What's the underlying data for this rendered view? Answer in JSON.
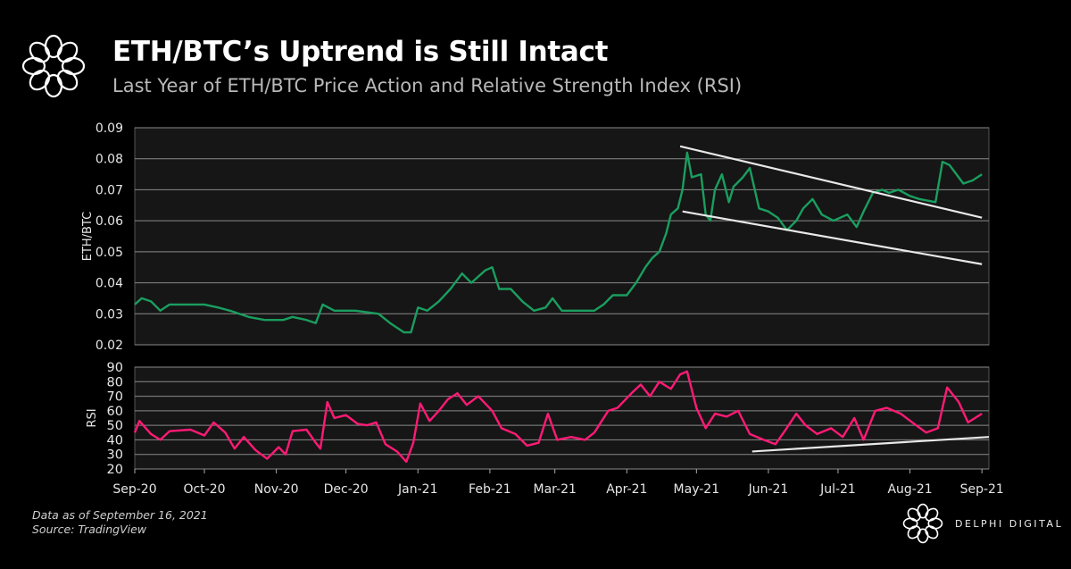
{
  "header": {
    "title": "ETH/BTC’s Uptrend is Still Intact",
    "subtitle": "Last Year of ETH/BTC Price Action and Relative Strength Index (RSI)"
  },
  "footer": {
    "data_note": "Data as of September 16, 2021",
    "source": "Source: TradingView",
    "brand": "DELPHI DIGITAL"
  },
  "colors": {
    "eth_line": "#1a9e5f",
    "rsi_line": "#ff1a75",
    "trendline": "#e8e8e8",
    "plot_bg": "#161616",
    "grid": "#8a8a8a"
  },
  "chart_data": [
    {
      "type": "line",
      "ylabel": "ETH/BTC",
      "ylim": [
        0.02,
        0.09
      ],
      "yticks": [
        "0.09",
        "0.08",
        "0.07",
        "0.06",
        "0.05",
        "0.04",
        "0.03",
        "0.02"
      ],
      "xlim": [
        "2020-09-01",
        "2021-09-04"
      ],
      "grid": true,
      "series": [
        {
          "values": [
            [
              "2020-09-01",
              0.033
            ],
            [
              "2020-09-04",
              0.035
            ],
            [
              "2020-09-08",
              0.034
            ],
            [
              "2020-09-12",
              0.031
            ],
            [
              "2020-09-16",
              0.033
            ],
            [
              "2020-09-28",
              0.033
            ],
            [
              "2020-10-01",
              0.033
            ],
            [
              "2020-10-07",
              0.032
            ],
            [
              "2020-10-12",
              0.031
            ],
            [
              "2020-10-20",
              0.029
            ],
            [
              "2020-10-27",
              0.028
            ],
            [
              "2020-11-04",
              0.028
            ],
            [
              "2020-11-08",
              0.029
            ],
            [
              "2020-11-14",
              0.028
            ],
            [
              "2020-11-18",
              0.027
            ],
            [
              "2020-11-21",
              0.033
            ],
            [
              "2020-11-26",
              0.031
            ],
            [
              "2020-12-05",
              0.031
            ],
            [
              "2020-12-15",
              0.03
            ],
            [
              "2020-12-20",
              0.027
            ],
            [
              "2020-12-26",
              0.024
            ],
            [
              "2020-12-29",
              0.024
            ],
            [
              "2021-01-01",
              0.032
            ],
            [
              "2021-01-05",
              0.031
            ],
            [
              "2021-01-10",
              0.034
            ],
            [
              "2021-01-15",
              0.038
            ],
            [
              "2021-01-20",
              0.043
            ],
            [
              "2021-01-24",
              0.04
            ],
            [
              "2021-01-30",
              0.044
            ],
            [
              "2021-02-02",
              0.045
            ],
            [
              "2021-02-05",
              0.038
            ],
            [
              "2021-02-10",
              0.038
            ],
            [
              "2021-02-15",
              0.034
            ],
            [
              "2021-02-20",
              0.031
            ],
            [
              "2021-02-25",
              0.032
            ],
            [
              "2021-02-28",
              0.035
            ],
            [
              "2021-03-04",
              0.031
            ],
            [
              "2021-03-12",
              0.031
            ],
            [
              "2021-03-18",
              0.031
            ],
            [
              "2021-03-22",
              0.033
            ],
            [
              "2021-03-26",
              0.036
            ],
            [
              "2021-04-01",
              0.036
            ],
            [
              "2021-04-05",
              0.04
            ],
            [
              "2021-04-09",
              0.045
            ],
            [
              "2021-04-12",
              0.048
            ],
            [
              "2021-04-15",
              0.05
            ],
            [
              "2021-04-18",
              0.056
            ],
            [
              "2021-04-20",
              0.062
            ],
            [
              "2021-04-23",
              0.064
            ],
            [
              "2021-04-25",
              0.07
            ],
            [
              "2021-04-27",
              0.082
            ],
            [
              "2021-04-29",
              0.074
            ],
            [
              "2021-05-03",
              0.075
            ],
            [
              "2021-05-05",
              0.062
            ],
            [
              "2021-05-07",
              0.06
            ],
            [
              "2021-05-09",
              0.07
            ],
            [
              "2021-05-12",
              0.075
            ],
            [
              "2021-05-15",
              0.066
            ],
            [
              "2021-05-17",
              0.071
            ],
            [
              "2021-05-21",
              0.074
            ],
            [
              "2021-05-24",
              0.077
            ],
            [
              "2021-05-28",
              0.064
            ],
            [
              "2021-06-01",
              0.063
            ],
            [
              "2021-06-05",
              0.061
            ],
            [
              "2021-06-09",
              0.057
            ],
            [
              "2021-06-13",
              0.06
            ],
            [
              "2021-06-16",
              0.064
            ],
            [
              "2021-06-20",
              0.067
            ],
            [
              "2021-06-24",
              0.062
            ],
            [
              "2021-06-29",
              0.06
            ],
            [
              "2021-07-05",
              0.062
            ],
            [
              "2021-07-09",
              0.058
            ],
            [
              "2021-07-12",
              0.063
            ],
            [
              "2021-07-16",
              0.069
            ],
            [
              "2021-07-20",
              0.07
            ],
            [
              "2021-07-23",
              0.069
            ],
            [
              "2021-07-27",
              0.07
            ],
            [
              "2021-08-01",
              0.068
            ],
            [
              "2021-08-05",
              0.067
            ],
            [
              "2021-08-12",
              0.066
            ],
            [
              "2021-08-15",
              0.079
            ],
            [
              "2021-08-18",
              0.078
            ],
            [
              "2021-08-24",
              0.072
            ],
            [
              "2021-08-28",
              0.073
            ],
            [
              "2021-09-01",
              0.075
            ]
          ]
        }
      ],
      "trendlines": [
        {
          "from": [
            "2021-04-24",
            0.084
          ],
          "to": [
            "2021-09-01",
            0.061
          ]
        },
        {
          "from": [
            "2021-04-25",
            0.063
          ],
          "to": [
            "2021-09-01",
            0.046
          ]
        }
      ]
    },
    {
      "type": "line",
      "ylabel": "RSI",
      "ylim": [
        20,
        90
      ],
      "yticks": [
        "90",
        "80",
        "70",
        "60",
        "50",
        "40",
        "30",
        "20"
      ],
      "xlim": [
        "2020-09-01",
        "2021-09-04"
      ],
      "xticks": [
        [
          "2020-09-01",
          "Sep-20"
        ],
        [
          "2020-10-01",
          "Oct-20"
        ],
        [
          "2020-11-01",
          "Nov-20"
        ],
        [
          "2020-12-01",
          "Dec-20"
        ],
        [
          "2021-01-01",
          "Jan-21"
        ],
        [
          "2021-02-01",
          "Feb-21"
        ],
        [
          "2021-03-01",
          "Mar-21"
        ],
        [
          "2021-04-01",
          "Apr-21"
        ],
        [
          "2021-05-01",
          "May-21"
        ],
        [
          "2021-06-01",
          "Jun-21"
        ],
        [
          "2021-07-01",
          "Jul-21"
        ],
        [
          "2021-08-01",
          "Aug-21"
        ],
        [
          "2021-09-01",
          "Sep-21"
        ]
      ],
      "grid": true,
      "series": [
        {
          "values": [
            [
              "2020-09-01",
              45
            ],
            [
              "2020-09-03",
              53
            ],
            [
              "2020-09-08",
              44
            ],
            [
              "2020-09-12",
              40
            ],
            [
              "2020-09-16",
              46
            ],
            [
              "2020-09-25",
              47
            ],
            [
              "2020-10-01",
              43
            ],
            [
              "2020-10-05",
              52
            ],
            [
              "2020-10-10",
              45
            ],
            [
              "2020-10-14",
              34
            ],
            [
              "2020-10-18",
              42
            ],
            [
              "2020-10-23",
              33
            ],
            [
              "2020-10-28",
              27
            ],
            [
              "2020-11-02",
              35
            ],
            [
              "2020-11-05",
              30
            ],
            [
              "2020-11-08",
              46
            ],
            [
              "2020-11-14",
              47
            ],
            [
              "2020-11-18",
              38
            ],
            [
              "2020-11-20",
              34
            ],
            [
              "2020-11-23",
              66
            ],
            [
              "2020-11-26",
              55
            ],
            [
              "2020-12-01",
              57
            ],
            [
              "2020-12-06",
              51
            ],
            [
              "2020-12-10",
              50
            ],
            [
              "2020-12-14",
              52
            ],
            [
              "2020-12-18",
              37
            ],
            [
              "2020-12-23",
              32
            ],
            [
              "2020-12-27",
              25
            ],
            [
              "2020-12-30",
              38
            ],
            [
              "2021-01-02",
              65
            ],
            [
              "2021-01-06",
              53
            ],
            [
              "2021-01-10",
              60
            ],
            [
              "2021-01-14",
              68
            ],
            [
              "2021-01-18",
              72
            ],
            [
              "2021-01-22",
              64
            ],
            [
              "2021-01-27",
              70
            ],
            [
              "2021-02-02",
              60
            ],
            [
              "2021-02-06",
              48
            ],
            [
              "2021-02-12",
              44
            ],
            [
              "2021-02-17",
              36
            ],
            [
              "2021-02-22",
              38
            ],
            [
              "2021-02-26",
              58
            ],
            [
              "2021-03-02",
              40
            ],
            [
              "2021-03-08",
              42
            ],
            [
              "2021-03-14",
              40
            ],
            [
              "2021-03-18",
              45
            ],
            [
              "2021-03-24",
              60
            ],
            [
              "2021-03-28",
              62
            ],
            [
              "2021-04-03",
              72
            ],
            [
              "2021-04-07",
              78
            ],
            [
              "2021-04-11",
              70
            ],
            [
              "2021-04-15",
              80
            ],
            [
              "2021-04-20",
              75
            ],
            [
              "2021-04-24",
              85
            ],
            [
              "2021-04-27",
              87
            ],
            [
              "2021-05-01",
              62
            ],
            [
              "2021-05-05",
              48
            ],
            [
              "2021-05-09",
              58
            ],
            [
              "2021-05-14",
              56
            ],
            [
              "2021-05-19",
              60
            ],
            [
              "2021-05-24",
              44
            ],
            [
              "2021-05-30",
              40
            ],
            [
              "2021-06-04",
              37
            ],
            [
              "2021-06-08",
              46
            ],
            [
              "2021-06-13",
              58
            ],
            [
              "2021-06-17",
              50
            ],
            [
              "2021-06-22",
              44
            ],
            [
              "2021-06-28",
              48
            ],
            [
              "2021-07-03",
              42
            ],
            [
              "2021-07-08",
              55
            ],
            [
              "2021-07-12",
              40
            ],
            [
              "2021-07-17",
              60
            ],
            [
              "2021-07-22",
              62
            ],
            [
              "2021-07-28",
              58
            ],
            [
              "2021-08-02",
              52
            ],
            [
              "2021-08-08",
              45
            ],
            [
              "2021-08-13",
              48
            ],
            [
              "2021-08-17",
              76
            ],
            [
              "2021-08-22",
              66
            ],
            [
              "2021-08-26",
              52
            ],
            [
              "2021-08-30",
              56
            ],
            [
              "2021-09-01",
              58
            ]
          ]
        }
      ],
      "trendlines": [
        {
          "from": [
            "2021-05-25",
            32
          ],
          "to": [
            "2021-09-04",
            42
          ]
        }
      ]
    }
  ]
}
